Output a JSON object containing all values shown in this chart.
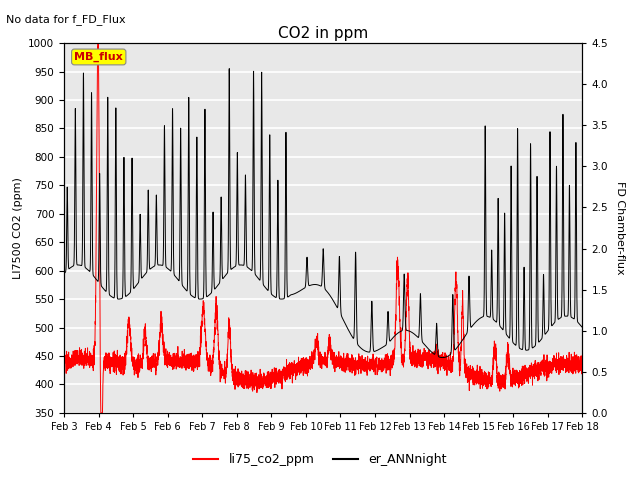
{
  "title": "CO2 in ppm",
  "subtitle": "No data for f_FD_Flux",
  "ylabel_left": "LI7500 CO2 (ppm)",
  "ylabel_right": "FD Chamber-flux",
  "ylim_left": [
    350,
    1000
  ],
  "ylim_right": [
    0.0,
    4.5
  ],
  "yticks_left": [
    350,
    400,
    450,
    500,
    550,
    600,
    650,
    700,
    750,
    800,
    850,
    900,
    950,
    1000
  ],
  "yticks_right": [
    0.0,
    0.5,
    1.0,
    1.5,
    2.0,
    2.5,
    3.0,
    3.5,
    4.0,
    4.5
  ],
  "legend_labels": [
    "li75_co2_ppm",
    "er_ANNnight"
  ],
  "legend_colors": [
    "#ff0000",
    "#000000"
  ],
  "mb_flux_box_color": "#ffff00",
  "mb_flux_text_color": "#cc0000",
  "line_color_red": "#ff0000",
  "line_color_black": "#000000",
  "bg_color": "#e8e8e8",
  "grid_color": "#ffffff",
  "x_date_labels": [
    "Feb 3",
    "Feb 4",
    "Feb 5",
    "Feb 6",
    "Feb 7",
    "Feb 8",
    "Feb 9",
    "Feb 10",
    "Feb 11",
    "Feb 12",
    "Feb 13",
    "Feb 14",
    "Feb 15",
    "Feb 16",
    "Feb 17",
    "Feb 18"
  ]
}
